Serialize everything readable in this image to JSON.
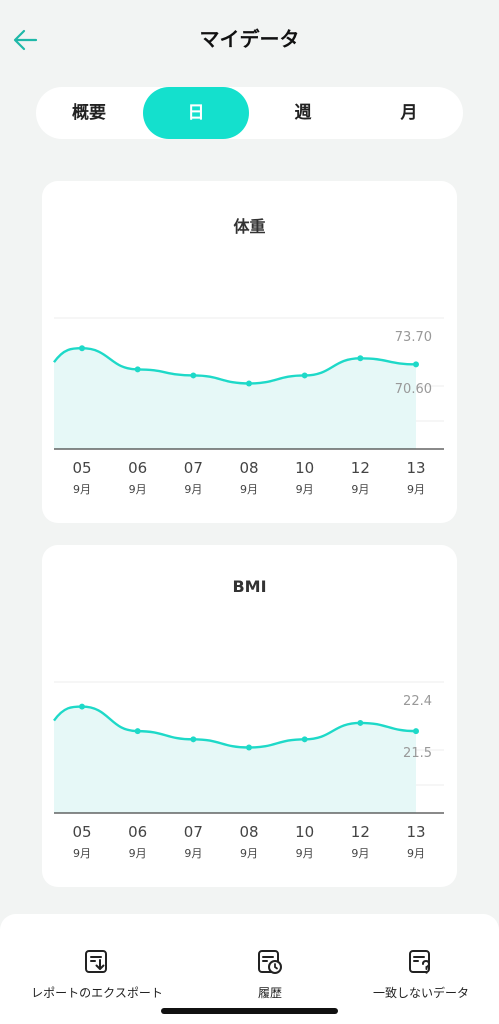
{
  "header": {
    "title": "マイデータ"
  },
  "tabs": [
    {
      "label": "概要",
      "active": false
    },
    {
      "label": "日",
      "active": true
    },
    {
      "label": "週",
      "active": false
    },
    {
      "label": "月",
      "active": false
    }
  ],
  "colors": {
    "accent": "#14e0cd",
    "line": "#1ed9c8",
    "fill": "#e6f8f7"
  },
  "chart_data": [
    {
      "type": "area",
      "title": "体重",
      "categories": [
        "05",
        "06",
        "07",
        "08",
        "10",
        "12",
        "13"
      ],
      "month_labels": [
        "9月",
        "9月",
        "9月",
        "9月",
        "9月",
        "9月",
        "9月"
      ],
      "values": [
        74.0,
        72.95,
        72.65,
        72.25,
        72.65,
        73.5,
        73.2
      ],
      "y_labels": [
        "73.70",
        "70.60"
      ],
      "ylim": [
        69.0,
        75.5
      ],
      "grid": true
    },
    {
      "type": "area",
      "title": "BMI",
      "categories": [
        "05",
        "06",
        "07",
        "08",
        "10",
        "12",
        "13"
      ],
      "month_labels": [
        "9月",
        "9月",
        "9月",
        "9月",
        "9月",
        "9月",
        "9月"
      ],
      "values": [
        22.5,
        22.2,
        22.1,
        22.0,
        22.1,
        22.3,
        22.2
      ],
      "y_labels": [
        "22.4",
        "21.5"
      ],
      "ylim": [
        21.2,
        22.8
      ],
      "grid": true
    }
  ],
  "bottom_actions": [
    {
      "label": "レポートのエクスポート",
      "icon": "export-report-icon"
    },
    {
      "label": "履歴",
      "icon": "history-icon"
    },
    {
      "label": "一致しないデータ",
      "icon": "unmatched-data-icon"
    }
  ]
}
